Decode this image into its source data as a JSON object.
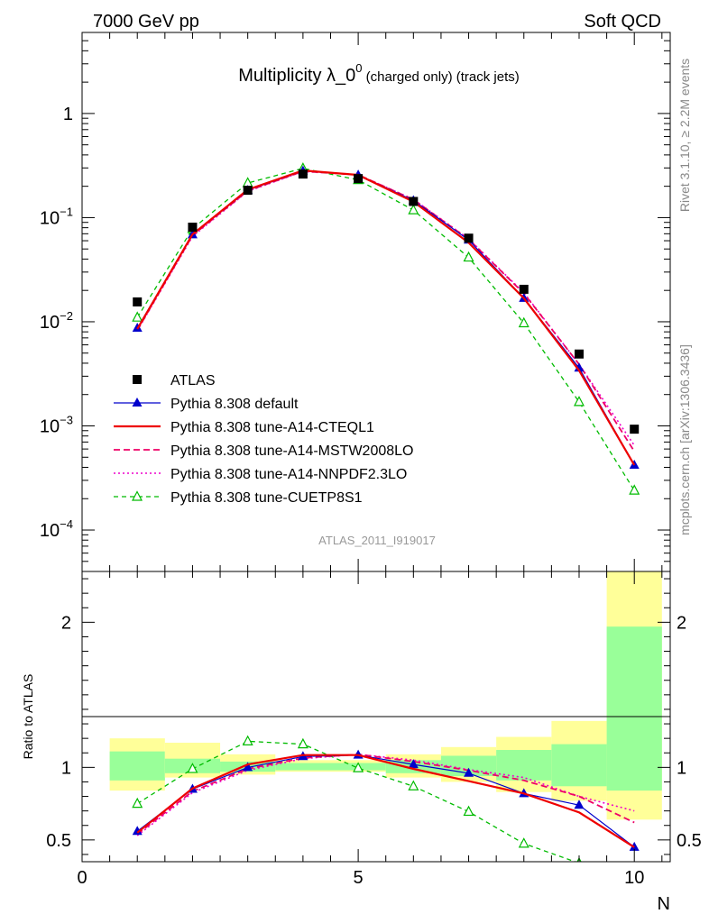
{
  "header": {
    "left": "7000 GeV pp",
    "right": "Soft QCD",
    "title_main": "Multiplicity λ_0",
    "title_sup": "0",
    "title_tail": " (charged only) (track jets)",
    "side_top": "Rivet 3.1.10, ≥ 2.2M events",
    "side_bottom": "mcplots.cern.ch [arXiv:1306.3436]",
    "watermark": "ATLAS_2011_I919017"
  },
  "colors": {
    "atlas": "#000000",
    "default": "#0000cc",
    "cteql1": "#ee0000",
    "mstw": "#ee0066",
    "nnpdf": "#ee00cc",
    "cuetp8s1": "#00bb00",
    "band_inner": "#99ff99",
    "band_outer": "#ffff99"
  },
  "chart_data": [
    {
      "type": "line",
      "panel": "main",
      "yscale": "log",
      "xlim": [
        0,
        10.65
      ],
      "ylim": [
        4e-05,
        6
      ],
      "x_ticks": [
        0,
        5,
        10
      ],
      "y_tick_labels": [
        {
          "base": "1",
          "exp": ""
        },
        {
          "base": "10",
          "exp": "−1"
        },
        {
          "base": "10",
          "exp": "−2"
        },
        {
          "base": "10",
          "exp": "−3"
        },
        {
          "base": "10",
          "exp": "−4"
        }
      ],
      "legend_position": "lower-left",
      "x": [
        1,
        2,
        3,
        4,
        5,
        6,
        7,
        8,
        9,
        10
      ],
      "series": [
        {
          "name": "ATLAS",
          "key": "atlas",
          "values": [
            0.0155,
            0.081,
            0.183,
            0.262,
            0.237,
            0.143,
            0.0635,
            0.0205,
            0.0049,
            0.00093
          ]
        },
        {
          "name": "Pythia 8.308 default",
          "key": "default",
          "values": [
            0.0087,
            0.0685,
            0.183,
            0.281,
            0.257,
            0.146,
            0.061,
            0.0168,
            0.0036,
            0.00042
          ]
        },
        {
          "name": "Pythia 8.308 tune-A14-CTEQL1",
          "key": "cteql1",
          "values": [
            0.0085,
            0.069,
            0.186,
            0.284,
            0.257,
            0.142,
            0.0575,
            0.0168,
            0.0034,
            0.00042
          ]
        },
        {
          "name": "Pythia 8.308 tune-A14-MSTW2008LO",
          "key": "mstw",
          "values": [
            0.0083,
            0.0675,
            0.181,
            0.279,
            0.258,
            0.149,
            0.062,
            0.0187,
            0.0039,
            0.00057
          ]
        },
        {
          "name": "Pythia 8.308 tune-A14-NNPDF2.3LO",
          "key": "nnpdf",
          "values": [
            0.0082,
            0.066,
            0.179,
            0.277,
            0.258,
            0.15,
            0.0625,
            0.019,
            0.0039,
            0.00065
          ]
        },
        {
          "name": "Pythia 8.308 tune-CUETP8S1",
          "key": "cuetp8s1",
          "values": [
            0.011,
            0.078,
            0.215,
            0.297,
            0.23,
            0.118,
            0.0415,
            0.0097,
            0.0017,
            0.00024
          ]
        }
      ]
    },
    {
      "type": "line",
      "panel": "ratio",
      "xlabel": "N",
      "ylabel": "Ratio to ATLAS",
      "xlim": [
        0,
        10.65
      ],
      "ylim": [
        0.35,
        2.35
      ],
      "y_ticks": [
        0.5,
        1,
        2
      ],
      "y_tick_labels": [
        "0.5",
        "1",
        "2"
      ],
      "x_tick_labels": [
        "0",
        "5",
        "10"
      ],
      "x": [
        1,
        2,
        3,
        4,
        5,
        6,
        7,
        8,
        9,
        10
      ],
      "bands": {
        "inner": [
          [
            0.91,
            1.11
          ],
          [
            0.96,
            1.06
          ],
          [
            0.97,
            1.04
          ],
          [
            0.98,
            1.03
          ],
          [
            0.98,
            1.03
          ],
          [
            0.96,
            1.05
          ],
          [
            0.94,
            1.08
          ],
          [
            0.91,
            1.12
          ],
          [
            0.87,
            1.16
          ],
          [
            0.84,
            1.97
          ]
        ],
        "outer": [
          [
            0.84,
            1.2
          ],
          [
            0.93,
            1.17
          ],
          [
            0.95,
            1.09
          ],
          [
            0.97,
            1.05
          ],
          [
            0.97,
            1.05
          ],
          [
            0.93,
            1.09
          ],
          [
            0.9,
            1.14
          ],
          [
            0.83,
            1.21
          ],
          [
            0.77,
            1.32
          ],
          [
            0.64,
            2.35
          ]
        ]
      },
      "series": [
        {
          "name": "Pythia 8.308 default",
          "key": "default",
          "values": [
            0.56,
            0.85,
            1.0,
            1.075,
            1.085,
            1.02,
            0.96,
            0.82,
            0.74,
            0.45
          ]
        },
        {
          "name": "Pythia 8.308 tune-A14-CTEQL1",
          "key": "cteql1",
          "values": [
            0.55,
            0.855,
            1.02,
            1.085,
            1.085,
            0.99,
            0.905,
            0.82,
            0.69,
            0.45
          ]
        },
        {
          "name": "Pythia 8.308 tune-A14-MSTW2008LO",
          "key": "mstw",
          "values": [
            0.54,
            0.835,
            0.99,
            1.065,
            1.09,
            1.04,
            0.98,
            0.91,
            0.8,
            0.62
          ]
        },
        {
          "name": "Pythia 8.308 tune-A14-NNPDF2.3LO",
          "key": "nnpdf",
          "values": [
            0.53,
            0.825,
            0.98,
            1.06,
            1.09,
            1.05,
            0.985,
            0.93,
            0.8,
            0.7
          ]
        },
        {
          "name": "Pythia 8.308 tune-CUETP8S1",
          "key": "cuetp8s1",
          "values": [
            0.75,
            0.99,
            1.18,
            1.16,
            0.995,
            0.87,
            0.695,
            0.475,
            0.34,
            0.25
          ]
        }
      ]
    }
  ]
}
